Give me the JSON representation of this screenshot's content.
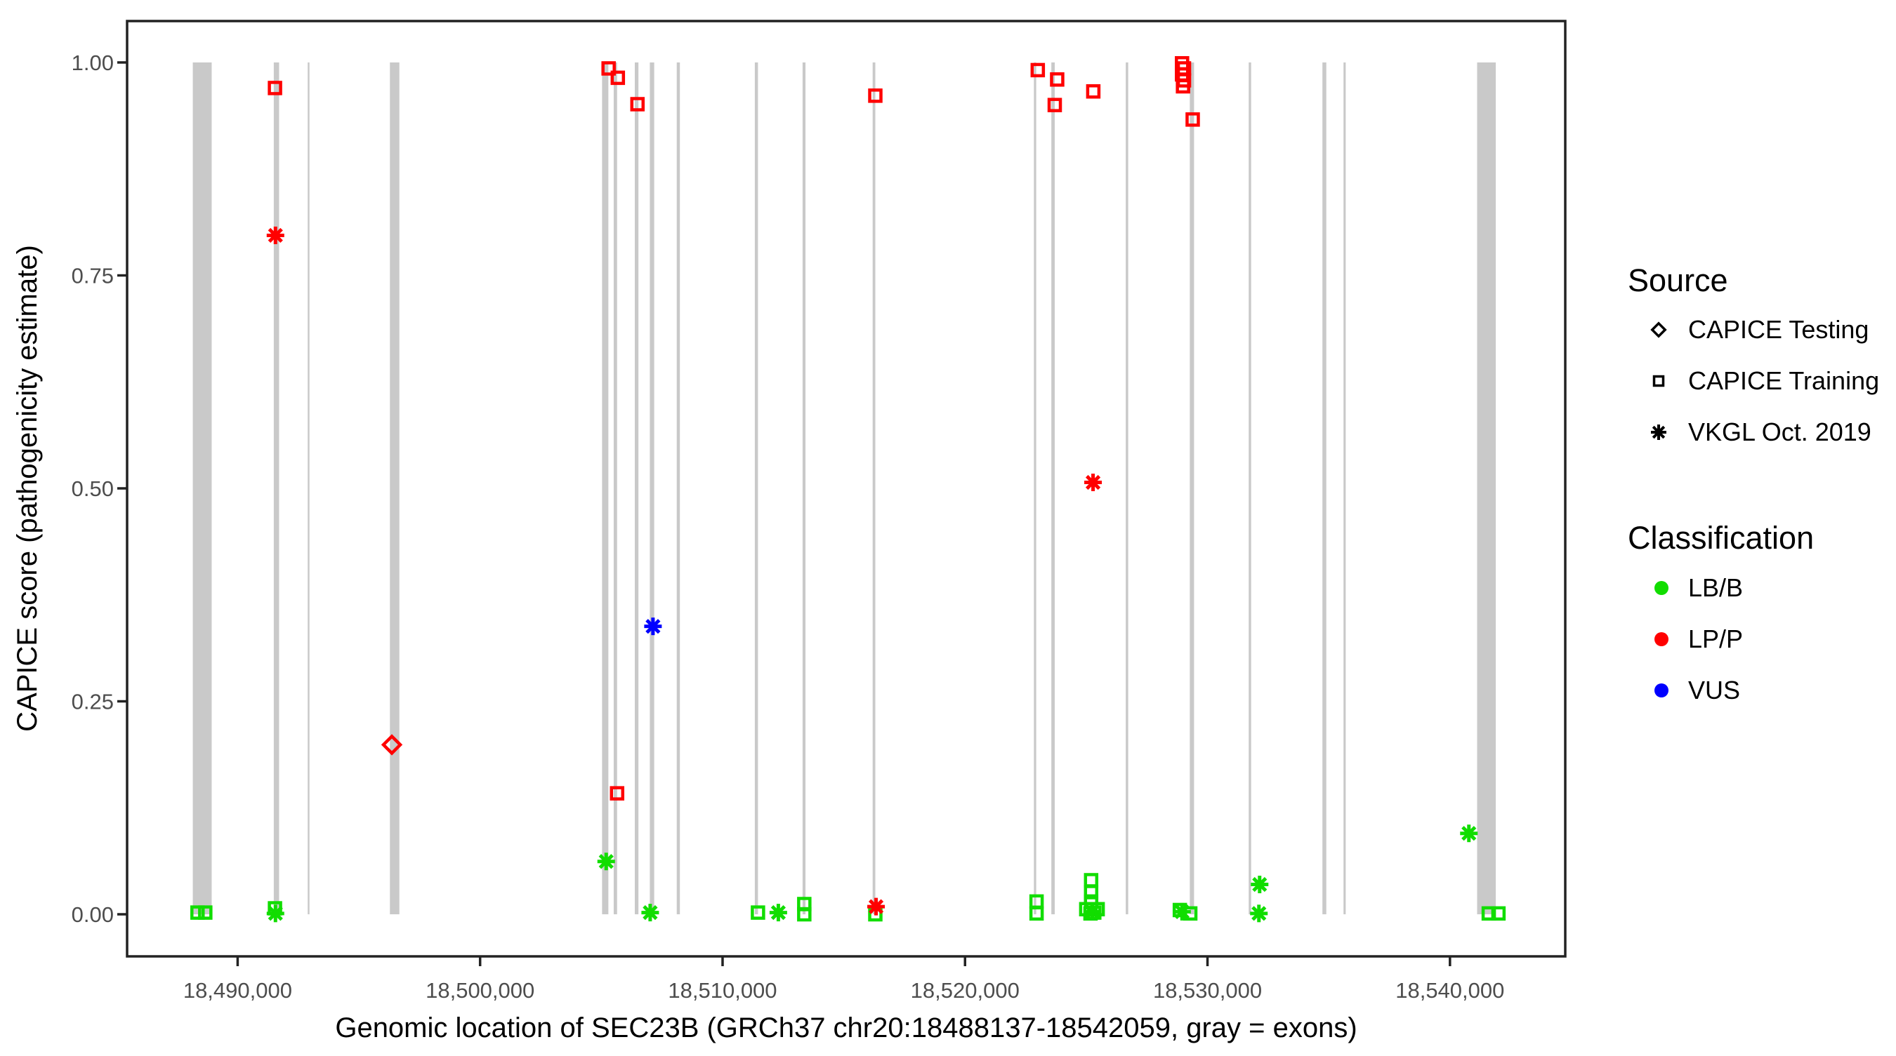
{
  "legend": {
    "source": {
      "title": "Source",
      "items": [
        {
          "label": "CAPICE Testing",
          "marker": "diamond"
        },
        {
          "label": "CAPICE Training",
          "marker": "square"
        },
        {
          "label": "VKGL Oct. 2019",
          "marker": "asterisk"
        }
      ]
    },
    "classification": {
      "title": "Classification",
      "items": [
        {
          "label": "LB/B",
          "color": "#11DD00"
        },
        {
          "label": "LP/P",
          "color": "#FF0000"
        },
        {
          "label": "VUS",
          "color": "#0000FF"
        }
      ]
    }
  },
  "chart_data": {
    "type": "scatter",
    "title": "",
    "xlabel": "Genomic location of SEC23B (GRCh37 chr20:18488137-18542059, gray = exons)",
    "ylabel": "CAPICE score (pathogenicity estimate)",
    "x_domain": [
      18485441,
      18544755
    ],
    "y_domain": [
      -0.0494,
      1.0486
    ],
    "x_ticks": [
      {
        "v": 18490000,
        "label": "18,490,000"
      },
      {
        "v": 18500000,
        "label": "18,500,000"
      },
      {
        "v": 18510000,
        "label": "18,510,000"
      },
      {
        "v": 18520000,
        "label": "18,520,000"
      },
      {
        "v": 18530000,
        "label": "18,530,000"
      },
      {
        "v": 18540000,
        "label": "18,540,000"
      }
    ],
    "y_ticks": [
      {
        "v": 0.0,
        "label": "0.00"
      },
      {
        "v": 0.25,
        "label": "0.25"
      },
      {
        "v": 0.5,
        "label": "0.50"
      },
      {
        "v": 0.75,
        "label": "0.75"
      },
      {
        "v": 1.0,
        "label": "1.00"
      }
    ],
    "grid": "off",
    "legend_position": "right",
    "exon_band_y_range": [
      0,
      1
    ],
    "exons": [
      [
        18488150,
        18488930
      ],
      [
        18491490,
        18491710
      ],
      [
        18492890,
        18492950
      ],
      [
        18496280,
        18496670
      ],
      [
        18505030,
        18505290
      ],
      [
        18505510,
        18505650
      ],
      [
        18506380,
        18506530
      ],
      [
        18507000,
        18507180
      ],
      [
        18508110,
        18508240
      ],
      [
        18511330,
        18511460
      ],
      [
        18513300,
        18513420
      ],
      [
        18516190,
        18516300
      ],
      [
        18522840,
        18522935
      ],
      [
        18523560,
        18523700
      ],
      [
        18526630,
        18526730
      ],
      [
        18529270,
        18529445
      ],
      [
        18531700,
        18531800
      ],
      [
        18534740,
        18534900
      ],
      [
        18535610,
        18535700
      ],
      [
        18541120,
        18541890
      ]
    ],
    "points": [
      {
        "x": 18488345,
        "y": 0.002,
        "source": "training",
        "cls": "LB/B"
      },
      {
        "x": 18488665,
        "y": 0.002,
        "source": "training",
        "cls": "LB/B"
      },
      {
        "x": 18491540,
        "y": 0.007,
        "source": "training",
        "cls": "LB/B"
      },
      {
        "x": 18511460,
        "y": 0.002,
        "source": "training",
        "cls": "LB/B"
      },
      {
        "x": 18513370,
        "y": 0.012,
        "source": "training",
        "cls": "LB/B"
      },
      {
        "x": 18513370,
        "y": 0.0,
        "source": "training",
        "cls": "LB/B"
      },
      {
        "x": 18516300,
        "y": 0.0,
        "source": "training",
        "cls": "LB/B"
      },
      {
        "x": 18522950,
        "y": 0.015,
        "source": "training",
        "cls": "LB/B"
      },
      {
        "x": 18522950,
        "y": 0.001,
        "source": "training",
        "cls": "LB/B"
      },
      {
        "x": 18525200,
        "y": 0.04,
        "source": "training",
        "cls": "LB/B"
      },
      {
        "x": 18525200,
        "y": 0.026,
        "source": "training",
        "cls": "LB/B"
      },
      {
        "x": 18525200,
        "y": 0.015,
        "source": "training",
        "cls": "LB/B"
      },
      {
        "x": 18525000,
        "y": 0.006,
        "source": "training",
        "cls": "LB/B"
      },
      {
        "x": 18525175,
        "y": 0.001,
        "source": "training",
        "cls": "LB/B"
      },
      {
        "x": 18525330,
        "y": 0.002,
        "source": "training",
        "cls": "LB/B"
      },
      {
        "x": 18525470,
        "y": 0.006,
        "source": "training",
        "cls": "LB/B"
      },
      {
        "x": 18528860,
        "y": 0.005,
        "source": "training",
        "cls": "LB/B"
      },
      {
        "x": 18529290,
        "y": 0.001,
        "source": "training",
        "cls": "LB/B"
      },
      {
        "x": 18541600,
        "y": 0.001,
        "source": "training",
        "cls": "LB/B"
      },
      {
        "x": 18542000,
        "y": 0.001,
        "source": "training",
        "cls": "LB/B"
      },
      {
        "x": 18491560,
        "y": 0.001,
        "source": "vkgl",
        "cls": "LB/B"
      },
      {
        "x": 18505200,
        "y": 0.062,
        "source": "vkgl",
        "cls": "LB/B"
      },
      {
        "x": 18507015,
        "y": 0.002,
        "source": "vkgl",
        "cls": "LB/B"
      },
      {
        "x": 18512300,
        "y": 0.002,
        "source": "vkgl",
        "cls": "LB/B"
      },
      {
        "x": 18525250,
        "y": 0.003,
        "source": "vkgl",
        "cls": "LB/B"
      },
      {
        "x": 18528950,
        "y": 0.003,
        "source": "vkgl",
        "cls": "LB/B"
      },
      {
        "x": 18532150,
        "y": 0.035,
        "source": "vkgl",
        "cls": "LB/B"
      },
      {
        "x": 18532120,
        "y": 0.001,
        "source": "vkgl",
        "cls": "LB/B"
      },
      {
        "x": 18540780,
        "y": 0.095,
        "source": "vkgl",
        "cls": "LB/B"
      },
      {
        "x": 18491540,
        "y": 0.97,
        "source": "training",
        "cls": "LP/P"
      },
      {
        "x": 18505300,
        "y": 0.993,
        "source": "training",
        "cls": "LP/P"
      },
      {
        "x": 18505680,
        "y": 0.982,
        "source": "training",
        "cls": "LP/P"
      },
      {
        "x": 18506490,
        "y": 0.951,
        "source": "training",
        "cls": "LP/P"
      },
      {
        "x": 18505650,
        "y": 0.142,
        "source": "training",
        "cls": "LP/P"
      },
      {
        "x": 18516300,
        "y": 0.961,
        "source": "training",
        "cls": "LP/P"
      },
      {
        "x": 18523000,
        "y": 0.991,
        "source": "training",
        "cls": "LP/P"
      },
      {
        "x": 18523800,
        "y": 0.98,
        "source": "training",
        "cls": "LP/P"
      },
      {
        "x": 18523700,
        "y": 0.95,
        "source": "training",
        "cls": "LP/P"
      },
      {
        "x": 18525290,
        "y": 0.966,
        "source": "training",
        "cls": "LP/P"
      },
      {
        "x": 18528950,
        "y": 0.999,
        "source": "training",
        "cls": "LP/P"
      },
      {
        "x": 18529030,
        "y": 0.993,
        "source": "training",
        "cls": "LP/P"
      },
      {
        "x": 18528950,
        "y": 0.986,
        "source": "training",
        "cls": "LP/P"
      },
      {
        "x": 18529030,
        "y": 0.979,
        "source": "training",
        "cls": "LP/P"
      },
      {
        "x": 18528990,
        "y": 0.972,
        "source": "training",
        "cls": "LP/P"
      },
      {
        "x": 18529390,
        "y": 0.933,
        "source": "training",
        "cls": "LP/P"
      },
      {
        "x": 18496360,
        "y": 0.199,
        "source": "testing",
        "cls": "LP/P"
      },
      {
        "x": 18491560,
        "y": 0.797,
        "source": "vkgl",
        "cls": "LP/P"
      },
      {
        "x": 18525280,
        "y": 0.507,
        "source": "vkgl",
        "cls": "LP/P"
      },
      {
        "x": 18516330,
        "y": 0.009,
        "source": "vkgl",
        "cls": "LP/P"
      },
      {
        "x": 18507130,
        "y": 0.338,
        "source": "vkgl",
        "cls": "VUS"
      }
    ],
    "colors": {
      "LB/B": "#11DD00",
      "LP/P": "#FF0000",
      "VUS": "#0000FF",
      "exon": "#C9C9C9",
      "axis": "#222222",
      "tick_label": "#4D4D4D",
      "legend_marker": "#000000"
    }
  }
}
